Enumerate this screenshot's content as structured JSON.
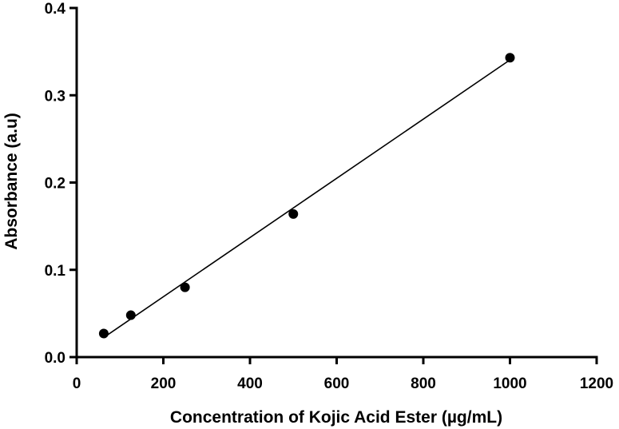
{
  "chart_data": {
    "type": "scatter",
    "title": "",
    "xlabel": "Concentration of Kojic Acid Ester (µg/mL)",
    "ylabel": "Absorbance (a.u)",
    "xlim": [
      0,
      1200
    ],
    "ylim": [
      0.0,
      0.4
    ],
    "x_ticks": [
      0,
      200,
      400,
      600,
      800,
      1000,
      1200
    ],
    "x_tick_labels": [
      "0",
      "200",
      "400",
      "600",
      "800",
      "1000",
      "1200"
    ],
    "y_ticks": [
      0.0,
      0.1,
      0.2,
      0.3,
      0.4
    ],
    "y_tick_labels": [
      "0.0",
      "0.1",
      "0.2",
      "0.3",
      "0.4"
    ],
    "grid": false,
    "legend": "none",
    "series": [
      {
        "points": [
          {
            "x": 62.5,
            "y": 0.027
          },
          {
            "x": 125,
            "y": 0.048
          },
          {
            "x": 250,
            "y": 0.08
          },
          {
            "x": 500,
            "y": 0.164
          },
          {
            "x": 1000,
            "y": 0.343
          }
        ],
        "color": "#000000"
      }
    ],
    "fit_line": {
      "type": "linear",
      "x_range": [
        62.5,
        1000
      ],
      "y_range": [
        0.0225,
        0.3405
      ],
      "color": "#000000"
    }
  }
}
